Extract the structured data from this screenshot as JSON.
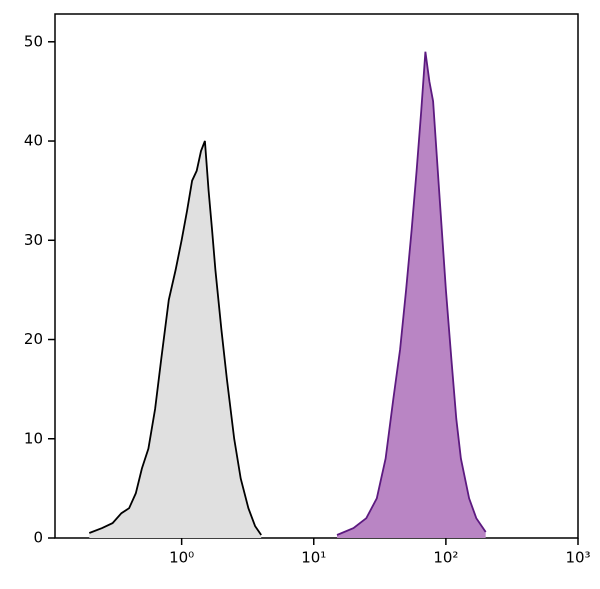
{
  "chart_data": {
    "type": "area",
    "log_x": true,
    "xlim": [
      0.11,
      1000
    ],
    "ylim": [
      0,
      52.8
    ],
    "xticks": [
      {
        "value": 1,
        "label": "10⁰"
      },
      {
        "value": 10,
        "label": "10¹"
      },
      {
        "value": 100,
        "label": "10²"
      },
      {
        "value": 1000,
        "label": "10³"
      }
    ],
    "yticks": [
      0,
      10,
      20,
      30,
      40,
      50
    ],
    "series": [
      {
        "color": "#000000",
        "fill": "#e0e0e0",
        "x": [
          0.2,
          0.25,
          0.3,
          0.35,
          0.4,
          0.45,
          0.5,
          0.56,
          0.63,
          0.7,
          0.8,
          0.9,
          1.0,
          1.1,
          1.2,
          1.3,
          1.4,
          1.5,
          1.6,
          1.7,
          1.8,
          2.0,
          2.2,
          2.5,
          2.8,
          3.2,
          3.6,
          4.0
        ],
        "values": [
          0.5,
          1,
          1.5,
          2.5,
          3,
          4.5,
          7,
          9,
          13,
          18,
          24,
          27,
          30,
          33,
          36,
          37,
          39,
          40,
          35,
          31,
          27,
          21,
          16,
          10,
          6,
          3,
          1.2,
          0.3
        ]
      },
      {
        "color": "#5c1a80",
        "fill": "#b985c4",
        "x": [
          15,
          20,
          25,
          30,
          35,
          40,
          45,
          50,
          55,
          60,
          65,
          70,
          75,
          80,
          90,
          100,
          110,
          120,
          130,
          150,
          170,
          200
        ],
        "values": [
          0.3,
          1,
          2,
          4,
          8,
          14,
          19,
          25,
          31,
          37,
          43,
          49,
          46,
          44,
          34,
          25,
          18,
          12,
          8,
          4,
          2,
          0.6
        ]
      }
    ]
  }
}
